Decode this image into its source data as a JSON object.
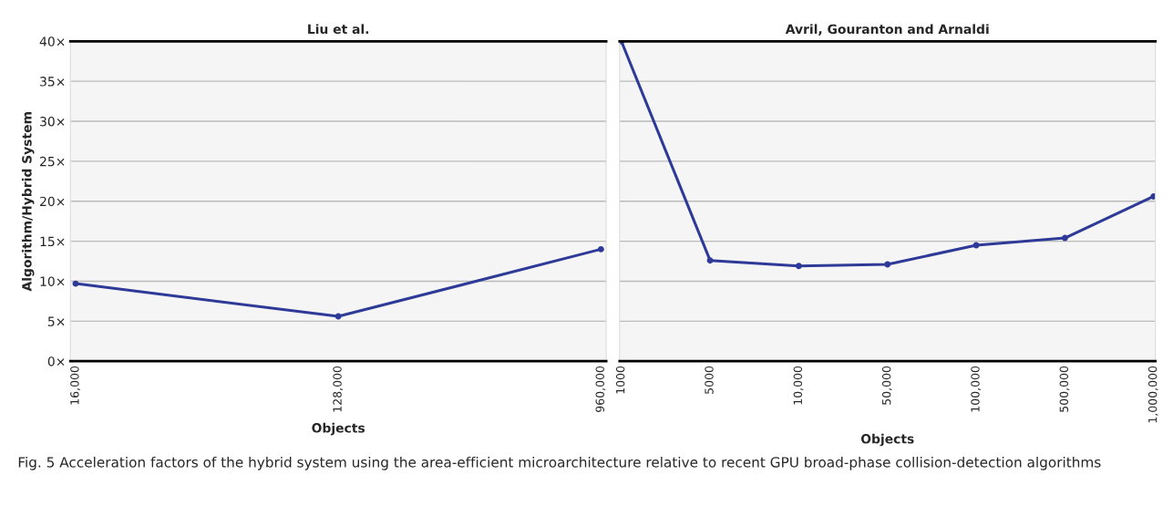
{
  "chart_data": [
    {
      "type": "line",
      "title": "Liu et al.",
      "xlabel": "Objects",
      "ylabel": "Algorithm/Hybrid System",
      "categories": [
        "16,000",
        "128,000",
        "960,000"
      ],
      "series": [
        {
          "color": "#2e3a97",
          "values": [
            9.7,
            5.6,
            14
          ]
        }
      ],
      "ylim": [
        0,
        40
      ],
      "yticks": [
        {
          "value": 0,
          "label": "0×"
        },
        {
          "value": 5,
          "label": "5×"
        },
        {
          "value": 10,
          "label": "10×"
        },
        {
          "value": 15,
          "label": "15×"
        },
        {
          "value": 20,
          "label": "20×"
        },
        {
          "value": 25,
          "label": "25×"
        },
        {
          "value": 30,
          "label": "30×"
        },
        {
          "value": 35,
          "label": "35×"
        },
        {
          "value": 40,
          "label": "40×"
        }
      ],
      "grid": "y",
      "marker": "circle",
      "line_style": "solid"
    },
    {
      "type": "line",
      "title": "Avril, Gouranton and Arnaldi",
      "xlabel": "Objects",
      "categories": [
        "1000",
        "5000",
        "10,000",
        "50,000",
        "100,000",
        "500,000",
        "1,000,000"
      ],
      "series": [
        {
          "color": "#2e3a97",
          "values": [
            40,
            12.6,
            11.9,
            12.1,
            14.5,
            15.4,
            20.6
          ]
        }
      ],
      "ylim": [
        0,
        40
      ],
      "yticks": [
        {
          "value": 0,
          "label": null
        },
        {
          "value": 5,
          "label": null
        },
        {
          "value": 10,
          "label": null
        },
        {
          "value": 15,
          "label": null
        },
        {
          "value": 20,
          "label": null
        },
        {
          "value": 25,
          "label": null
        },
        {
          "value": 30,
          "label": null
        },
        {
          "value": 35,
          "label": null
        },
        {
          "value": 40,
          "label": null
        }
      ],
      "tick_labels": "x",
      "grid": "y",
      "marker": "circle",
      "line_style": "solid",
      "annotations": [
        "Fig. 5 Acceleration factors of the hybrid system using the area-efficient microarchitecture relative to recent GPU broad-phase collision-detection algorithms"
      ]
    }
  ]
}
